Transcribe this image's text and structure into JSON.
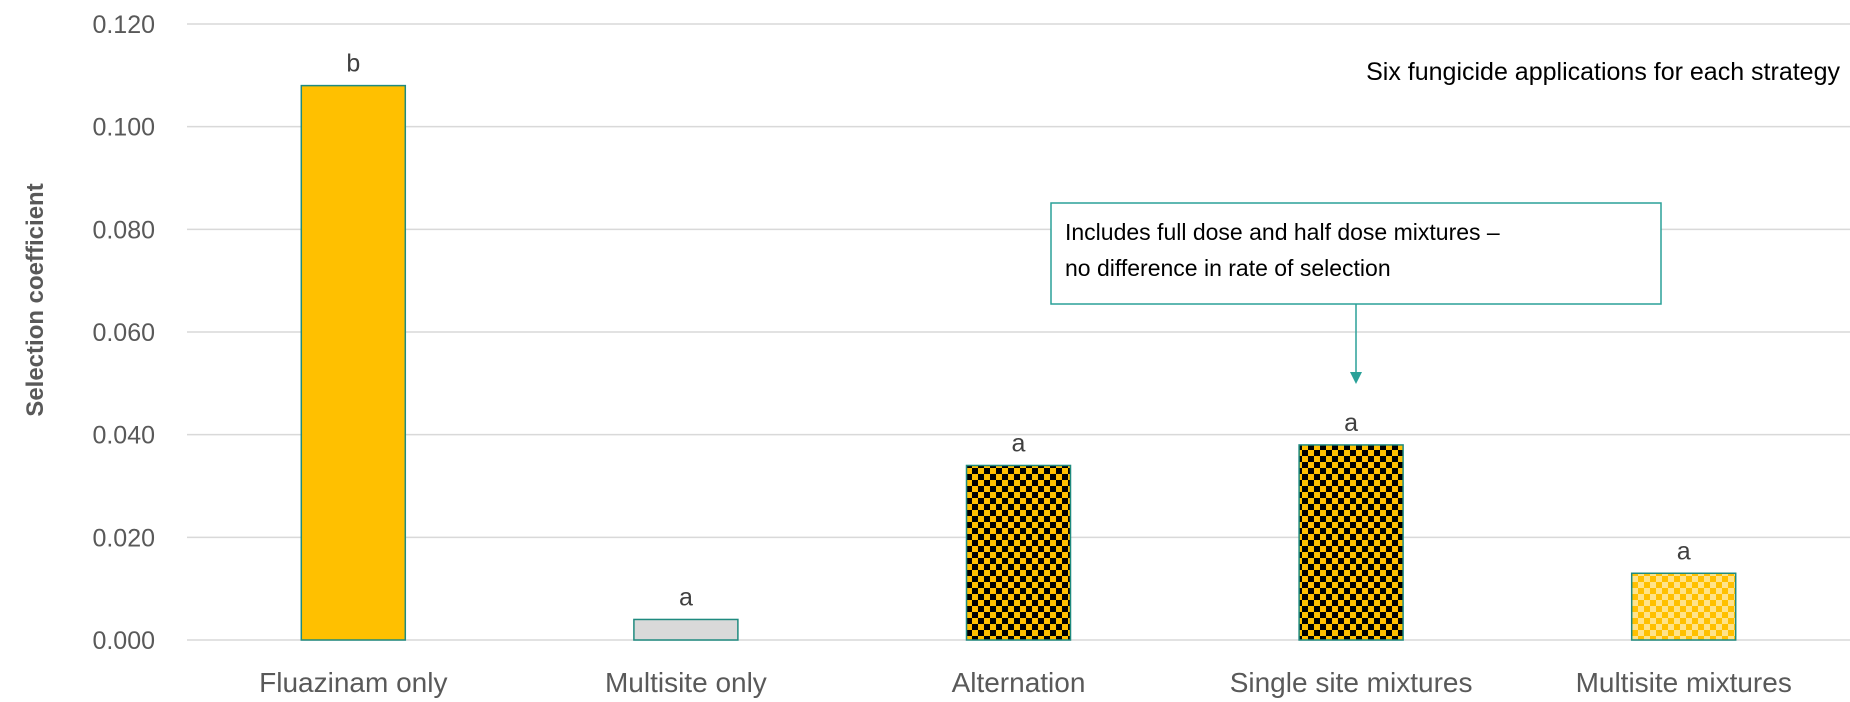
{
  "chart_data": {
    "type": "bar",
    "categories": [
      "Fluazinam only",
      "Multisite only",
      "Alternation",
      "Single site mixtures",
      "Multisite mixtures"
    ],
    "values": [
      0.108,
      0.004,
      0.034,
      0.038,
      0.013
    ],
    "significance_letters": [
      "b",
      "a",
      "a",
      "a",
      "a"
    ],
    "bar_styles": [
      "solid-gold",
      "solid-grey",
      "checker-gold-black",
      "checker-gold-black",
      "checker-gold-lightgold"
    ],
    "title": "",
    "xlabel": "",
    "ylabel": "Selection coefficient",
    "ylim": [
      0,
      0.12
    ],
    "yticks": [
      0,
      0.02,
      0.04,
      0.06,
      0.08,
      0.1,
      0.12
    ],
    "ytick_labels": [
      "0.000",
      "0.020",
      "0.040",
      "0.060",
      "0.080",
      "0.100",
      "0.120"
    ],
    "grid": true,
    "legend": "none",
    "annotations": {
      "note": "Six fungicide applications for each strategy",
      "callout_line1": "Includes full dose and half dose mixtures –",
      "callout_line2": "no difference in rate of selection",
      "callout_target": "Single site mixtures"
    },
    "colors": {
      "gold": "#FFC000",
      "grey": "#D9D9D9",
      "black": "#000000",
      "light_gold": "#FFE38A",
      "bar_border": "#1F8A7F",
      "callout_border": "#2AA198",
      "gridline": "#D9D9D9"
    }
  }
}
